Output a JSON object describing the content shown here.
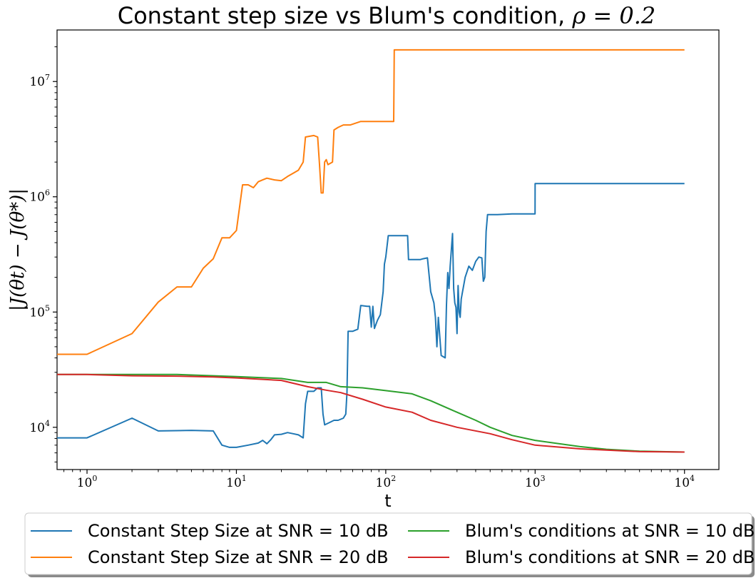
{
  "chart_data": {
    "type": "line",
    "title": "Constant step size vs Blum's condition, ",
    "title_math": "ρ = 0.2",
    "xlabel": "t",
    "ylabel": "|J(θt) − J(θ*)|",
    "xscale": "log",
    "yscale": "log",
    "xlim": [
      0.63,
      17000
    ],
    "ylim": [
      4300,
      28000000
    ],
    "grid": false,
    "legend_placement": "below-center",
    "x_ticks": [
      {
        "value": 1,
        "base": "10",
        "exp": "0"
      },
      {
        "value": 10,
        "base": "10",
        "exp": "1"
      },
      {
        "value": 100,
        "base": "10",
        "exp": "2"
      },
      {
        "value": 1000,
        "base": "10",
        "exp": "3"
      },
      {
        "value": 10000,
        "base": "10",
        "exp": "4"
      }
    ],
    "y_ticks": [
      {
        "value": 10000,
        "base": "10",
        "exp": "4"
      },
      {
        "value": 100000,
        "base": "10",
        "exp": "5"
      },
      {
        "value": 1000000,
        "base": "10",
        "exp": "6"
      },
      {
        "value": 10000000,
        "base": "10",
        "exp": "7"
      }
    ],
    "series": [
      {
        "name": "Constant Step Size at SNR = 10 dB",
        "color": "#1f77b4",
        "points": [
          [
            0.63,
            8100
          ],
          [
            1,
            8100
          ],
          [
            2,
            12000
          ],
          [
            3,
            9300
          ],
          [
            5,
            9400
          ],
          [
            7,
            9300
          ],
          [
            8,
            7000
          ],
          [
            9,
            6700
          ],
          [
            10,
            6700
          ],
          [
            12,
            7000
          ],
          [
            14,
            7300
          ],
          [
            15,
            7700
          ],
          [
            16,
            7200
          ],
          [
            17,
            7800
          ],
          [
            18,
            8600
          ],
          [
            20,
            8700
          ],
          [
            22,
            9000
          ],
          [
            24,
            8800
          ],
          [
            26,
            8600
          ],
          [
            28,
            8100
          ],
          [
            29,
            16000
          ],
          [
            30,
            20500
          ],
          [
            33,
            20500
          ],
          [
            35,
            22000
          ],
          [
            37,
            22000
          ],
          [
            38,
            13000
          ],
          [
            39,
            10500
          ],
          [
            42,
            11000
          ],
          [
            45,
            11500
          ],
          [
            48,
            11500
          ],
          [
            52,
            12000
          ],
          [
            54,
            13000
          ],
          [
            55,
            20000
          ],
          [
            56,
            68000
          ],
          [
            60,
            68000
          ],
          [
            65,
            71000
          ],
          [
            68,
            114000
          ],
          [
            75,
            112000
          ],
          [
            78,
            112000
          ],
          [
            80,
            74000
          ],
          [
            82,
            112000
          ],
          [
            84,
            72000
          ],
          [
            88,
            85000
          ],
          [
            92,
            95000
          ],
          [
            96,
            150000
          ],
          [
            98,
            260000
          ],
          [
            100,
            300000
          ],
          [
            104,
            460000
          ],
          [
            140,
            460000
          ],
          [
            142,
            285000
          ],
          [
            170,
            285000
          ],
          [
            178,
            290000
          ],
          [
            190,
            295000
          ],
          [
            200,
            150000
          ],
          [
            210,
            120000
          ],
          [
            215,
            90000
          ],
          [
            220,
            50000
          ],
          [
            225,
            90000
          ],
          [
            235,
            42000
          ],
          [
            250,
            40000
          ],
          [
            255,
            115000
          ],
          [
            260,
            220000
          ],
          [
            265,
            160000
          ],
          [
            270,
            250000
          ],
          [
            280,
            480000
          ],
          [
            285,
            160000
          ],
          [
            290,
            120000
          ],
          [
            295,
            110000
          ],
          [
            300,
            65000
          ],
          [
            305,
            170000
          ],
          [
            310,
            100000
          ],
          [
            315,
            90000
          ],
          [
            320,
            130000
          ],
          [
            340,
            200000
          ],
          [
            360,
            250000
          ],
          [
            380,
            230000
          ],
          [
            400,
            275000
          ],
          [
            420,
            300000
          ],
          [
            440,
            295000
          ],
          [
            450,
            185000
          ],
          [
            460,
            200000
          ],
          [
            470,
            500000
          ],
          [
            480,
            700000
          ],
          [
            560,
            700000
          ],
          [
            700,
            710000
          ],
          [
            999,
            710000
          ],
          [
            1000,
            1300000
          ],
          [
            10000,
            1300000
          ]
        ]
      },
      {
        "name": "Constant Step Size at SNR = 20 dB",
        "color": "#ff7f0e",
        "points": [
          [
            0.63,
            43000
          ],
          [
            1,
            43000
          ],
          [
            2,
            65000
          ],
          [
            3,
            122000
          ],
          [
            4,
            165000
          ],
          [
            5,
            165000
          ],
          [
            6,
            240000
          ],
          [
            7,
            290000
          ],
          [
            8,
            440000
          ],
          [
            9,
            440000
          ],
          [
            10,
            510000
          ],
          [
            11,
            1270000
          ],
          [
            12,
            1270000
          ],
          [
            13,
            1200000
          ],
          [
            14,
            1350000
          ],
          [
            15,
            1400000
          ],
          [
            16,
            1450000
          ],
          [
            18,
            1400000
          ],
          [
            20,
            1380000
          ],
          [
            22,
            1500000
          ],
          [
            24,
            1600000
          ],
          [
            26,
            1700000
          ],
          [
            28,
            2000000
          ],
          [
            29,
            3300000
          ],
          [
            33,
            3400000
          ],
          [
            35,
            3300000
          ],
          [
            36,
            1900000
          ],
          [
            37,
            1080000
          ],
          [
            38,
            1080000
          ],
          [
            39,
            2000000
          ],
          [
            40,
            2100000
          ],
          [
            41,
            1900000
          ],
          [
            44,
            2000000
          ],
          [
            45,
            3800000
          ],
          [
            48,
            4000000
          ],
          [
            52,
            4200000
          ],
          [
            58,
            4200000
          ],
          [
            68,
            4500000
          ],
          [
            99,
            4500000
          ],
          [
            113,
            4500000
          ],
          [
            114,
            18800000
          ],
          [
            10000,
            18800000
          ]
        ]
      },
      {
        "name": "Blum's conditions at SNR = 10 dB",
        "color": "#2ca02c",
        "points": [
          [
            0.63,
            28700
          ],
          [
            1,
            28700
          ],
          [
            2,
            28700
          ],
          [
            4,
            28700
          ],
          [
            10,
            27500
          ],
          [
            20,
            26500
          ],
          [
            30,
            24500
          ],
          [
            40,
            24500
          ],
          [
            50,
            22500
          ],
          [
            70,
            22000
          ],
          [
            100,
            20800
          ],
          [
            150,
            19500
          ],
          [
            200,
            17000
          ],
          [
            300,
            13500
          ],
          [
            400,
            11500
          ],
          [
            500,
            10000
          ],
          [
            700,
            8500
          ],
          [
            1000,
            7700
          ],
          [
            2000,
            6800
          ],
          [
            3000,
            6450
          ],
          [
            5000,
            6200
          ],
          [
            10000,
            6100
          ]
        ]
      },
      {
        "name": "Blum's conditions at SNR = 20 dB",
        "color": "#d62728",
        "points": [
          [
            0.63,
            28700
          ],
          [
            1,
            28700
          ],
          [
            2,
            28000
          ],
          [
            4,
            27800
          ],
          [
            7,
            27300
          ],
          [
            10,
            26800
          ],
          [
            20,
            25500
          ],
          [
            30,
            22500
          ],
          [
            40,
            21000
          ],
          [
            50,
            20000
          ],
          [
            70,
            17500
          ],
          [
            100,
            15000
          ],
          [
            150,
            13500
          ],
          [
            200,
            11500
          ],
          [
            300,
            10000
          ],
          [
            500,
            8800
          ],
          [
            700,
            7800
          ],
          [
            1000,
            7000
          ],
          [
            2000,
            6500
          ],
          [
            5000,
            6150
          ],
          [
            10000,
            6100
          ]
        ]
      }
    ]
  }
}
